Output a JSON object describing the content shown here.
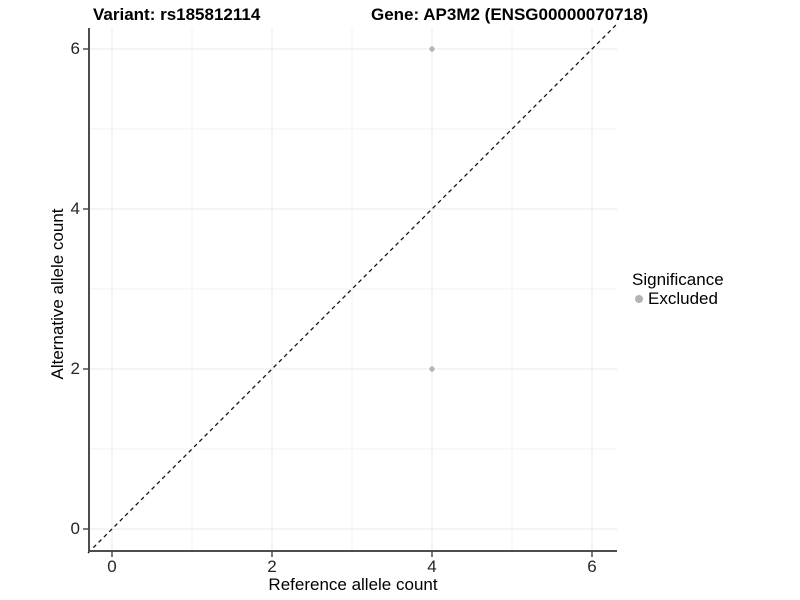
{
  "titles": {
    "variant": "Variant: rs185812114",
    "gene": "Gene: AP3M2 (ENSG00000070718)"
  },
  "legend": {
    "title": "Significance",
    "items": [
      {
        "label": "Excluded",
        "color": "#b3b3b3"
      }
    ]
  },
  "chart_data": {
    "type": "scatter",
    "title": "Variant: rs185812114    Gene: AP3M2 (ENSG00000070718)",
    "xlabel": "Reference allele count",
    "ylabel": "Alternative allele count",
    "x_ticks": [
      0,
      2,
      4,
      6
    ],
    "y_ticks": [
      0,
      2,
      4,
      6
    ],
    "xlim": [
      -0.3,
      6.3
    ],
    "ylim": [
      -0.3,
      6.3
    ],
    "grid_values": [
      0,
      1,
      2,
      3,
      4,
      5,
      6
    ],
    "grid": true,
    "legend_position": "right",
    "series": [
      {
        "name": "Excluded",
        "points": [
          {
            "x": 4,
            "y": 6
          },
          {
            "x": 4,
            "y": 2
          }
        ]
      }
    ],
    "identity_line": {
      "style": "dashed",
      "from": -0.3,
      "to": 6.3
    }
  },
  "colors": {
    "point": "#b3b3b3",
    "grid_major": "#e8e8e8",
    "grid_minor": "#f2f2f2",
    "axis": "#4d4d4d",
    "identity_line": "#141414",
    "text": "#000000",
    "tick_text": "#262626"
  }
}
